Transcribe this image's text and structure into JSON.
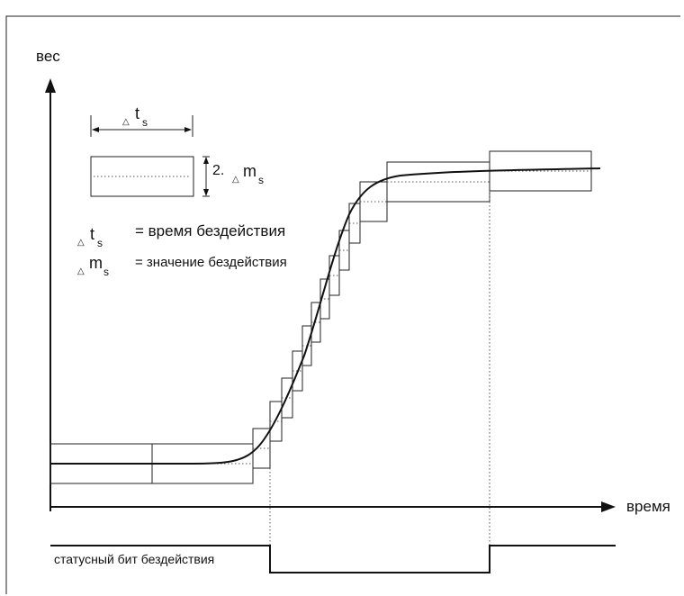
{
  "diagram": {
    "y_axis_label": "вес",
    "x_axis_label": "время",
    "legend": {
      "delta_symbol": "△",
      "t_letter": "t",
      "m_letter": "m",
      "sub_s": "s",
      "two_factor": "2.",
      "t_definition": "= время бездействия",
      "m_definition": "= значение бездействия"
    },
    "status_bit_label": "статусный бит бездействия"
  },
  "colors": {
    "line": "#111111",
    "dotted": "#555555",
    "background": "#ffffff"
  }
}
